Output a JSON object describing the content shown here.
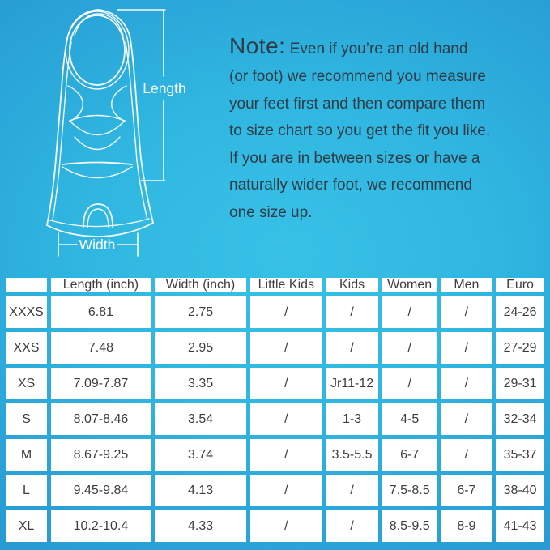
{
  "colors": {
    "background_center": "#38c1e7",
    "background_edge": "#2697cf",
    "cell_background": "#ffffff",
    "table_text": "#3d3d3d",
    "note_text": "#2d3c46",
    "line_art": "#ffffff"
  },
  "fin_diagram": {
    "length_label": "Length",
    "width_label": "Width"
  },
  "note": {
    "label": "Note:",
    "lines": [
      "Even if you’re an old hand",
      "(or foot) we recommend you measure",
      "your feet first and then compare them",
      "to size chart so you get the fit you like.",
      "If you are in between sizes or have a",
      "naturally wider foot, we recommend",
      "one size up."
    ]
  },
  "chart_data": {
    "type": "table",
    "title": "Swim fin size chart",
    "columns": [
      "",
      "Length (inch)",
      "Width (inch)",
      "Little Kids",
      "Kids",
      "Women",
      "Men",
      "Euro"
    ],
    "rows": [
      [
        "XXXS",
        "6.81",
        "2.75",
        "/",
        "/",
        "/",
        "/",
        "24-26"
      ],
      [
        "XXS",
        "7.48",
        "2.95",
        "/",
        "/",
        "/",
        "/",
        "27-29"
      ],
      [
        "XS",
        "7.09-7.87",
        "3.35",
        "/",
        "Jr11-12",
        "/",
        "/",
        "29-31"
      ],
      [
        "S",
        "8.07-8.46",
        "3.54",
        "/",
        "1-3",
        "4-5",
        "/",
        "32-34"
      ],
      [
        "M",
        "8.67-9.25",
        "3.74",
        "/",
        "3.5-5.5",
        "6-7",
        "/",
        "35-37"
      ],
      [
        "L",
        "9.45-9.84",
        "4.13",
        "/",
        "/",
        "7.5-8.5",
        "6-7",
        "38-40"
      ],
      [
        "XL",
        "10.2-10.4",
        "4.33",
        "/",
        "/",
        "8.5-9.5",
        "8-9",
        "41-43"
      ]
    ]
  }
}
